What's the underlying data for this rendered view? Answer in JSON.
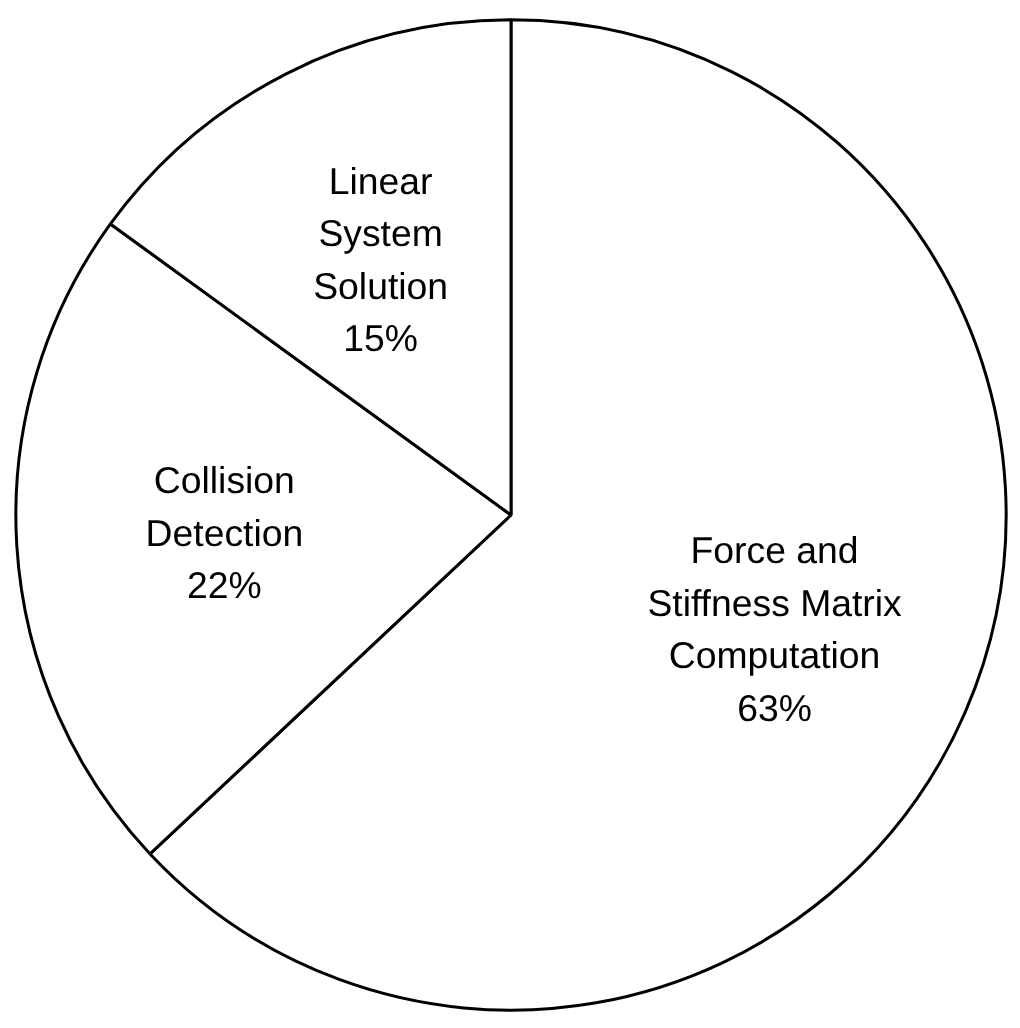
{
  "chart_data": {
    "type": "pie",
    "categories": [
      "Force and\nStiffness Matrix\nComputation",
      "Collision\nDetection",
      "Linear\nSystem\nSolution"
    ],
    "values": [
      63,
      22,
      15
    ],
    "value_labels": [
      "63%",
      "22%",
      "15%"
    ],
    "colors": [
      "#ffffff",
      "#ffffff",
      "#ffffff"
    ]
  }
}
